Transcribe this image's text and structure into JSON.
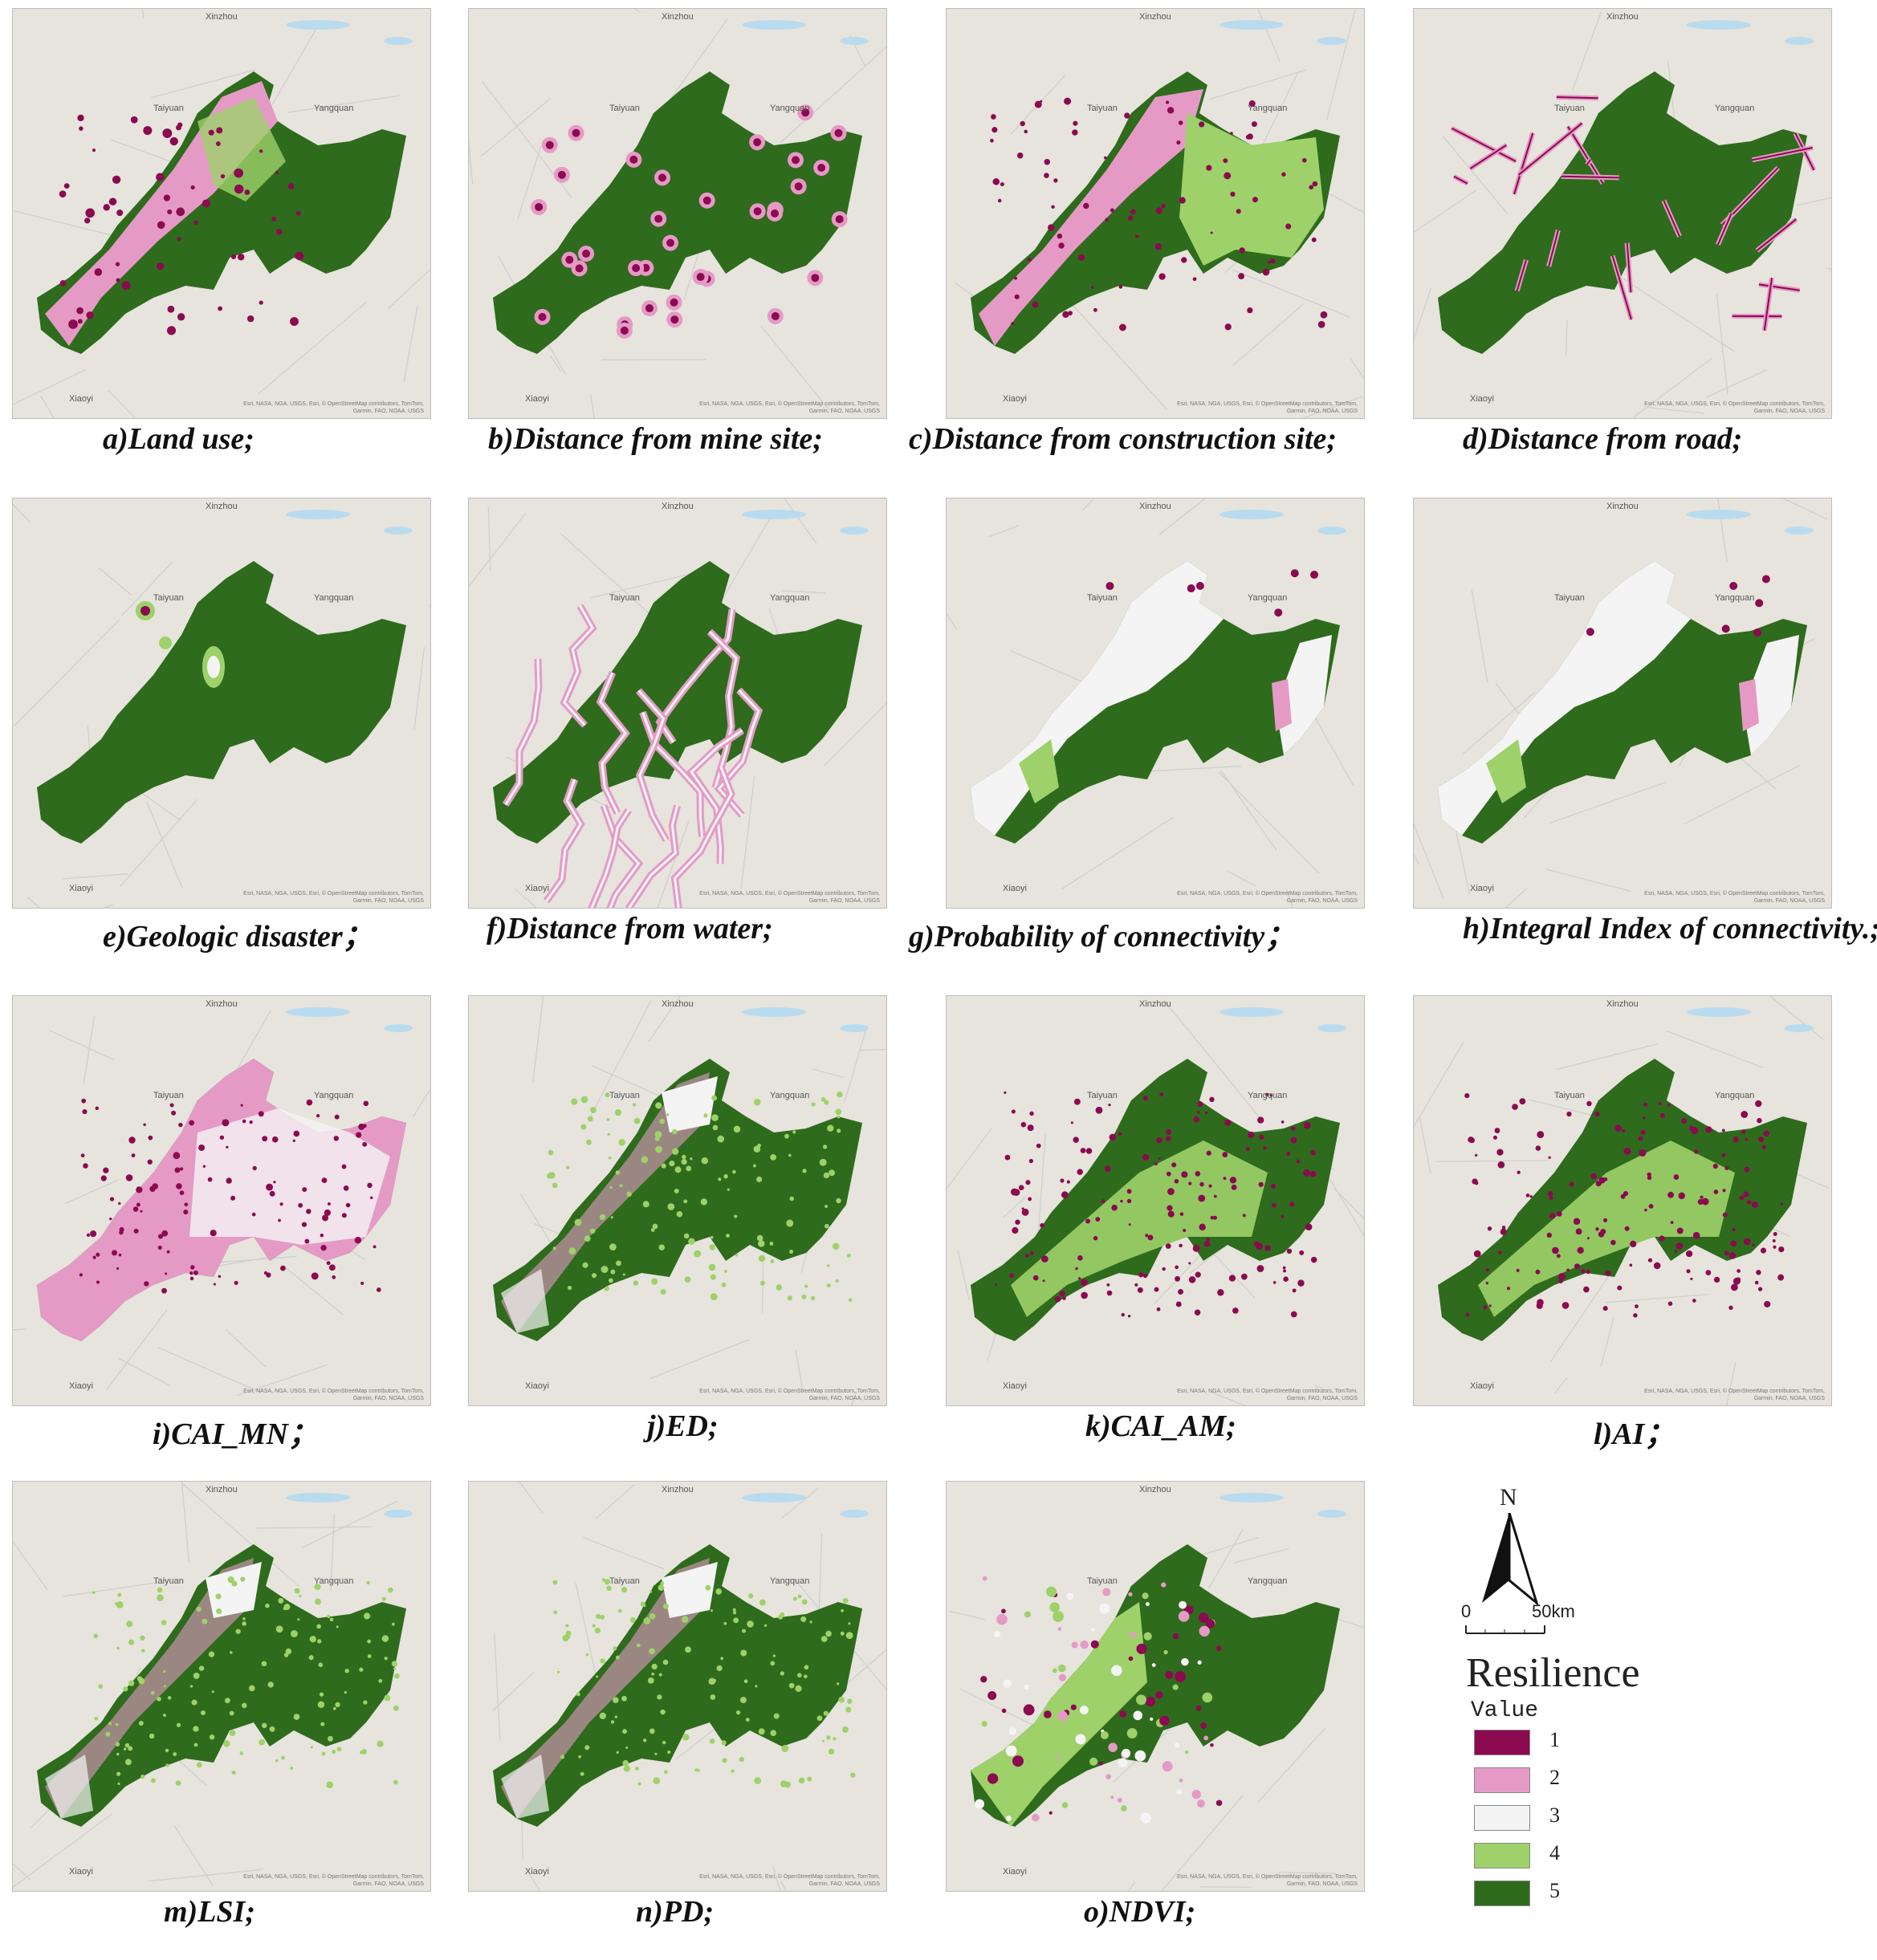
{
  "map_labels": {
    "north_city": "Xinzhou",
    "west_city": "Taiyuan",
    "east_city": "Yangquan",
    "south_city": "Xiaoyi",
    "credit": "Esri, NASA, NGA, USGS, Esri, © OpenStreetMap contributors, TomTom, Garmin, FAO, NOAA, USGS"
  },
  "panels": [
    {
      "id": "a",
      "caption": "a)Land use;",
      "pattern": "mixed-pink-green"
    },
    {
      "id": "b",
      "caption": "b)Distance from mine site;",
      "pattern": "green-dots"
    },
    {
      "id": "c",
      "caption": "c)Distance from construction site;",
      "pattern": "pink-lightgreen"
    },
    {
      "id": "d",
      "caption": "d)Distance from road;",
      "pattern": "green-lines"
    },
    {
      "id": "e",
      "caption": "e)Geologic disaster；",
      "pattern": "green-solid"
    },
    {
      "id": "f",
      "caption": "f)Distance from water;",
      "pattern": "green-rivers"
    },
    {
      "id": "g",
      "caption": "g)Probability of connectivity；",
      "pattern": "white-green"
    },
    {
      "id": "h",
      "caption": "h)Integral Index of connectivity.;",
      "pattern": "white-green"
    },
    {
      "id": "i",
      "caption": "i)CAI_MN；",
      "pattern": "pink-purple"
    },
    {
      "id": "j",
      "caption": "j)ED;",
      "pattern": "lightgreen"
    },
    {
      "id": "k",
      "caption": "k)CAI_AM;",
      "pattern": "dark-mix"
    },
    {
      "id": "l",
      "caption": "l)AI；",
      "pattern": "dark-mix"
    },
    {
      "id": "m",
      "caption": "m)LSI;",
      "pattern": "lightgreen"
    },
    {
      "id": "n",
      "caption": "n)PD;",
      "pattern": "lightgreen"
    },
    {
      "id": "o",
      "caption": "o)NDVI;",
      "pattern": "ndvi"
    }
  ],
  "north_arrow": "N",
  "scale": {
    "start": "0",
    "end": "50km"
  },
  "legend": {
    "title": "Resilience",
    "subtitle": "Value",
    "items": [
      {
        "label": "1",
        "color": "#8b0a50"
      },
      {
        "label": "2",
        "color": "#e59ac6"
      },
      {
        "label": "3",
        "color": "#f4f4f4"
      },
      {
        "label": "4",
        "color": "#9ed16a"
      },
      {
        "label": "5",
        "color": "#2e6b1c"
      }
    ]
  }
}
